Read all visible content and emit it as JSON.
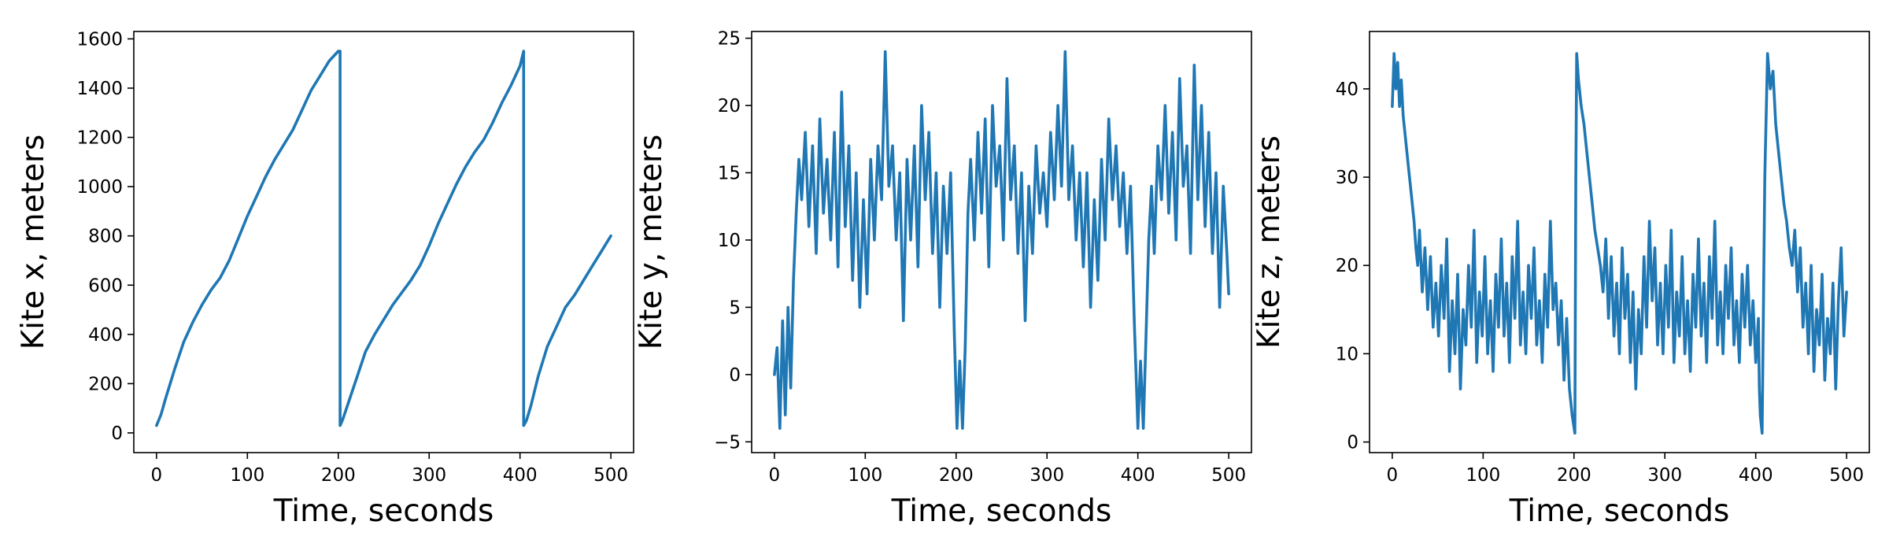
{
  "colors": {
    "series": "#1f77b4",
    "axes": "#000000",
    "background": "#ffffff"
  },
  "chart_data": [
    {
      "type": "line",
      "xlabel": "Time, seconds",
      "ylabel": "Kite x, meters",
      "xlim": [
        -25,
        525
      ],
      "ylim": [
        -80,
        1630
      ],
      "xticks": [
        0,
        100,
        200,
        300,
        400,
        500
      ],
      "yticks": [
        0,
        200,
        400,
        600,
        800,
        1000,
        1200,
        1400,
        1600
      ],
      "grid": false,
      "legend": "none",
      "series": [
        {
          "values_desc": "sawtooth",
          "x": [
            0,
            5,
            10,
            20,
            30,
            40,
            50,
            60,
            70,
            80,
            90,
            100,
            110,
            120,
            130,
            140,
            150,
            160,
            170,
            180,
            190,
            200,
            202,
            202,
            205,
            210,
            220,
            230,
            240,
            250,
            260,
            270,
            280,
            290,
            300,
            310,
            320,
            330,
            340,
            350,
            360,
            370,
            380,
            390,
            400,
            404,
            404,
            407,
            412,
            420,
            430,
            440,
            450,
            460,
            470,
            480,
            490,
            500
          ],
          "y": [
            30,
            75,
            140,
            260,
            370,
            450,
            520,
            580,
            630,
            700,
            790,
            880,
            960,
            1040,
            1110,
            1170,
            1230,
            1310,
            1390,
            1450,
            1510,
            1550,
            1550,
            30,
            55,
            110,
            220,
            330,
            400,
            460,
            520,
            570,
            620,
            680,
            760,
            850,
            930,
            1010,
            1080,
            1140,
            1190,
            1260,
            1340,
            1410,
            1490,
            1550,
            30,
            50,
            110,
            230,
            350,
            430,
            510,
            560,
            620,
            680,
            740,
            800
          ]
        }
      ]
    },
    {
      "type": "line",
      "xlabel": "Time, seconds",
      "ylabel": "Kite y, meters",
      "xlim": [
        -25,
        525
      ],
      "ylim": [
        -5.8,
        25.5
      ],
      "xticks": [
        0,
        100,
        200,
        300,
        400,
        500
      ],
      "yticks": [
        -5,
        0,
        5,
        10,
        15,
        20,
        25
      ],
      "grid": false,
      "legend": "none",
      "series": [
        {
          "x": [
            0,
            3,
            6,
            9,
            12,
            15,
            18,
            21,
            24,
            27,
            30,
            34,
            38,
            42,
            46,
            50,
            54,
            58,
            62,
            66,
            70,
            74,
            78,
            82,
            86,
            90,
            94,
            98,
            102,
            106,
            110,
            114,
            118,
            122,
            126,
            130,
            134,
            138,
            142,
            146,
            150,
            154,
            158,
            162,
            166,
            170,
            174,
            178,
            182,
            186,
            190,
            194,
            198,
            201,
            204,
            207,
            210,
            213,
            216,
            220,
            224,
            228,
            232,
            236,
            240,
            244,
            248,
            252,
            256,
            260,
            264,
            268,
            272,
            276,
            280,
            284,
            288,
            292,
            296,
            300,
            304,
            308,
            312,
            316,
            320,
            324,
            328,
            332,
            336,
            340,
            344,
            348,
            352,
            356,
            360,
            364,
            368,
            372,
            376,
            380,
            384,
            388,
            392,
            396,
            400,
            403,
            406,
            409,
            412,
            415,
            418,
            422,
            426,
            430,
            434,
            438,
            442,
            446,
            450,
            454,
            458,
            462,
            466,
            470,
            474,
            478,
            482,
            486,
            490,
            494,
            498,
            500
          ],
          "y": [
            0,
            2,
            -4,
            4,
            -3,
            5,
            -1,
            7,
            12,
            16,
            13,
            18,
            11,
            17,
            9,
            19,
            12,
            16,
            10,
            18,
            8,
            21,
            11,
            17,
            7,
            15,
            5,
            13,
            6,
            16,
            10,
            17,
            13,
            24,
            14,
            17,
            10,
            15,
            4,
            16,
            10,
            17,
            8,
            20,
            13,
            18,
            9,
            15,
            5,
            14,
            9,
            15,
            3,
            -4,
            1,
            -4,
            2,
            12,
            16,
            10,
            18,
            12,
            19,
            8,
            20,
            14,
            17,
            10,
            22,
            13,
            17,
            9,
            15,
            4,
            14,
            9,
            17,
            12,
            15,
            11,
            18,
            13,
            20,
            14,
            24,
            13,
            17,
            10,
            15,
            8,
            15,
            5,
            13,
            7,
            16,
            10,
            19,
            13,
            17,
            11,
            15,
            9,
            14,
            4,
            -4,
            1,
            -4,
            3,
            10,
            14,
            9,
            17,
            13,
            20,
            12,
            18,
            10,
            22,
            14,
            17,
            9,
            23,
            13,
            20,
            11,
            18,
            9,
            15,
            5,
            14,
            9,
            6
          ]
        }
      ]
    },
    {
      "type": "line",
      "xlabel": "Time, seconds",
      "ylabel": "Kite z, meters",
      "xlim": [
        -25,
        525
      ],
      "ylim": [
        -1.2,
        46.5
      ],
      "xticks": [
        0,
        100,
        200,
        300,
        400,
        500
      ],
      "yticks": [
        0,
        10,
        20,
        30,
        40
      ],
      "grid": false,
      "legend": "none",
      "series": [
        {
          "x": [
            0,
            2,
            4,
            6,
            8,
            10,
            12,
            14,
            16,
            18,
            20,
            22,
            24,
            26,
            28,
            30,
            33,
            36,
            39,
            42,
            45,
            48,
            51,
            54,
            57,
            60,
            63,
            66,
            69,
            72,
            75,
            78,
            81,
            84,
            87,
            90,
            93,
            96,
            99,
            102,
            105,
            108,
            111,
            114,
            117,
            120,
            123,
            126,
            129,
            132,
            135,
            138,
            141,
            144,
            147,
            150,
            153,
            156,
            159,
            162,
            165,
            168,
            171,
            174,
            177,
            180,
            183,
            186,
            189,
            192,
            195,
            198,
            201,
            202,
            203,
            205,
            208,
            211,
            214,
            217,
            220,
            223,
            226,
            229,
            232,
            235,
            238,
            241,
            244,
            247,
            250,
            253,
            256,
            259,
            262,
            265,
            268,
            271,
            274,
            277,
            280,
            283,
            286,
            289,
            292,
            295,
            298,
            301,
            304,
            307,
            310,
            313,
            316,
            319,
            322,
            325,
            328,
            331,
            334,
            337,
            340,
            343,
            346,
            349,
            352,
            355,
            358,
            361,
            364,
            367,
            370,
            373,
            376,
            379,
            382,
            385,
            388,
            391,
            394,
            397,
            400,
            403,
            404,
            405,
            407,
            410,
            413,
            416,
            419,
            422,
            425,
            428,
            431,
            434,
            437,
            440,
            443,
            446,
            449,
            452,
            455,
            458,
            461,
            464,
            467,
            470,
            473,
            476,
            479,
            482,
            485,
            488,
            491,
            494,
            497,
            500
          ],
          "y": [
            38,
            44,
            40,
            43,
            38,
            41,
            37,
            35,
            33,
            31,
            29,
            27,
            25,
            22,
            20,
            24,
            17,
            22,
            15,
            21,
            13,
            18,
            12,
            20,
            14,
            23,
            8,
            16,
            10,
            19,
            6,
            15,
            11,
            20,
            13,
            24,
            9,
            17,
            12,
            21,
            10,
            16,
            8,
            19,
            13,
            23,
            12,
            18,
            9,
            21,
            14,
            25,
            11,
            17,
            10,
            20,
            14,
            22,
            11,
            16,
            9,
            19,
            13,
            25,
            15,
            18,
            11,
            16,
            7,
            14,
            6,
            3,
            1,
            30,
            44,
            41,
            38,
            36,
            33,
            30,
            27,
            24,
            22,
            20,
            17,
            23,
            14,
            21,
            12,
            18,
            10,
            22,
            14,
            19,
            9,
            17,
            6,
            15,
            10,
            21,
            13,
            25,
            16,
            22,
            11,
            18,
            10,
            20,
            13,
            24,
            9,
            17,
            12,
            21,
            10,
            16,
            8,
            19,
            13,
            23,
            12,
            18,
            9,
            21,
            14,
            25,
            11,
            17,
            10,
            20,
            14,
            22,
            11,
            16,
            9,
            19,
            13,
            20,
            11,
            16,
            9,
            14,
            6,
            3,
            1,
            30,
            44,
            40,
            42,
            36,
            33,
            30,
            27,
            25,
            22,
            20,
            24,
            17,
            22,
            13,
            18,
            10,
            20,
            8,
            15,
            11,
            19,
            7,
            14,
            10,
            18,
            6,
            16,
            22,
            12,
            17
          ]
        }
      ]
    }
  ]
}
